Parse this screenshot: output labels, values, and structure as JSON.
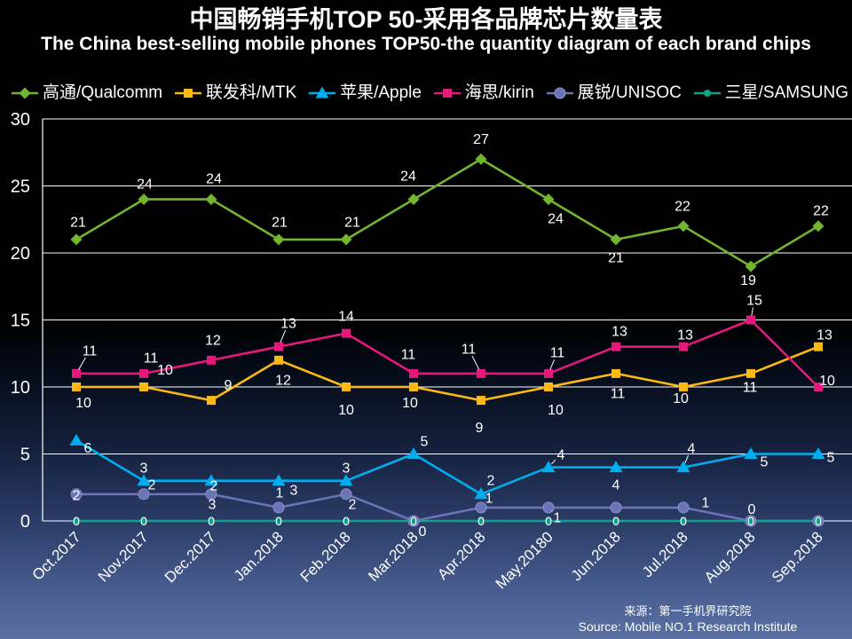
{
  "chart_data": {
    "type": "line",
    "title": "中国畅销手机TOP 50-采用各品牌芯片数量表",
    "subtitle": "The China best-selling mobile phones TOP50-the quantity diagram of each brand chips",
    "xlabel": "",
    "ylabel": "",
    "categories": [
      "Oct.2017",
      "Nov.2017",
      "Dec.2017",
      "Jan.2018",
      "Feb.2018",
      "Mar.2018",
      "Apr.2018",
      "May.20180",
      "Jun.2018",
      "Jul.2018",
      "Aug.2018",
      "Sep.2018"
    ],
    "ylim": [
      0,
      30
    ],
    "yticks": [
      0,
      5,
      10,
      15,
      20,
      25,
      30
    ],
    "grid": true,
    "legend_position": "top",
    "series": [
      {
        "name": "高通/Qualcomm",
        "color": "#72b52f",
        "marker": "diamond",
        "values": [
          21,
          24,
          24,
          21,
          21,
          24,
          27,
          24,
          21,
          22,
          19,
          22
        ]
      },
      {
        "name": "联发科/MTK",
        "color": "#fdb913",
        "marker": "square",
        "values": [
          10,
          10,
          9,
          12,
          10,
          10,
          9,
          10,
          11,
          10,
          11,
          13
        ]
      },
      {
        "name": "苹果/Apple",
        "color": "#00aeef",
        "marker": "triangle",
        "values": [
          6,
          3,
          3,
          3,
          3,
          5,
          2,
          4,
          4,
          4,
          5,
          5
        ]
      },
      {
        "name": "海思/kirin",
        "color": "#e5187b",
        "marker": "square",
        "values": [
          11,
          11,
          12,
          13,
          14,
          11,
          11,
          11,
          13,
          13,
          15,
          10
        ]
      },
      {
        "name": "展锐/UNISOC",
        "color": "#6b74b6",
        "marker": "circle",
        "values": [
          2,
          2,
          2,
          1,
          2,
          0,
          1,
          1,
          1,
          1,
          0,
          0
        ]
      },
      {
        "name": "三星/SAMSUNG",
        "color": "#13a08a",
        "marker": "dot",
        "values": [
          0,
          0,
          0,
          0,
          0,
          0,
          0,
          0,
          0,
          0,
          0,
          0
        ]
      }
    ]
  },
  "source": {
    "cn": "来源：第一手机界研究院",
    "en": "Source: Mobile NO.1 Research Institute"
  }
}
